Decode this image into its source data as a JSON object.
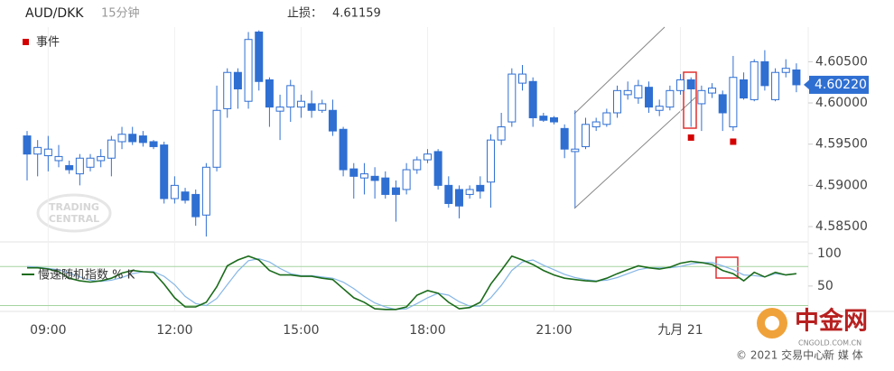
{
  "chart_data": [
    {
      "type": "candlestick",
      "title": "AUD/DKK",
      "subtitle": "15分钟",
      "stop_loss": {
        "label": "止损：",
        "value": 4.61159
      },
      "categories": [
        null,
        null,
        "09:00",
        null,
        null,
        null,
        null,
        null,
        null,
        null,
        null,
        null,
        null,
        null,
        "12:00",
        null,
        null,
        null,
        null,
        null,
        null,
        null,
        null,
        null,
        null,
        null,
        "15:00",
        null,
        null,
        null,
        null,
        null,
        null,
        null,
        null,
        null,
        null,
        null,
        "18:00",
        null,
        null,
        null,
        null,
        null,
        null,
        null,
        null,
        null,
        null,
        null,
        "21:00",
        null,
        null,
        null,
        null,
        null,
        null,
        null,
        null,
        null,
        null,
        null,
        "九月 21",
        null,
        null,
        null,
        null,
        null,
        null,
        null,
        null,
        null,
        null,
        null
      ],
      "open": [
        4.596,
        4.5938,
        4.5936,
        4.593,
        4.5924,
        4.5914,
        4.5922,
        4.593,
        4.5933,
        4.5953,
        4.5962,
        4.596,
        4.5953,
        4.5949,
        4.5884,
        4.5892,
        4.5889,
        4.5864,
        4.5922,
        4.5993,
        4.6037,
        4.6002,
        4.6086,
        4.6028,
        4.599,
        4.5995,
        4.5995,
        4.5999,
        4.5991,
        4.5991,
        4.5968,
        4.592,
        4.5909,
        4.5911,
        4.5909,
        4.5897,
        4.5895,
        4.5919,
        4.5931,
        4.5941,
        4.59,
        4.5895,
        4.5889,
        4.59,
        4.5904,
        4.5955,
        4.5977,
        4.6024,
        4.6026,
        4.5984,
        4.5982,
        4.5969,
        4.5941,
        4.5947,
        4.5971,
        4.5974,
        4.5988,
        4.601,
        4.6006,
        4.6019,
        4.5991,
        4.5995,
        4.6015,
        4.6028,
        4.5999,
        4.6012,
        4.601,
        4.5971,
        4.6028,
        4.6004,
        4.605,
        4.6004,
        4.6037,
        4.604
      ],
      "high": [
        4.5966,
        4.5955,
        4.596,
        4.5949,
        4.593,
        4.5938,
        4.5938,
        4.5944,
        4.596,
        4.5971,
        4.5971,
        4.5966,
        4.5955,
        4.5953,
        4.5911,
        4.5897,
        4.5895,
        4.5927,
        4.6021,
        4.6042,
        4.6042,
        4.6086,
        4.6088,
        4.6031,
        4.601,
        4.6028,
        4.601,
        4.6015,
        4.6004,
        4.6004,
        4.5971,
        4.5927,
        4.5927,
        4.5922,
        4.5917,
        4.5906,
        4.5927,
        4.5935,
        4.5944,
        4.5944,
        4.5911,
        4.59,
        4.59,
        4.5911,
        4.5962,
        4.5988,
        4.6042,
        4.6046,
        4.6031,
        4.5988,
        4.5984,
        4.5974,
        4.5991,
        4.5982,
        4.5982,
        4.5993,
        4.6021,
        4.6026,
        4.6028,
        4.6026,
        4.6004,
        4.6021,
        4.6035,
        4.6031,
        4.6021,
        4.6024,
        4.6015,
        4.6057,
        4.6037,
        4.6053,
        4.6064,
        4.6042,
        4.6053,
        4.6048
      ],
      "low": [
        4.5906,
        4.5911,
        4.5917,
        4.5922,
        4.5914,
        4.59,
        4.5917,
        4.5922,
        4.5911,
        4.5944,
        4.5949,
        4.5947,
        4.5944,
        4.5878,
        4.5878,
        4.5878,
        4.5851,
        4.5838,
        4.5917,
        4.5982,
        4.5993,
        4.5993,
        4.6015,
        4.5971,
        4.5955,
        4.5977,
        4.5982,
        4.5982,
        4.5988,
        4.596,
        4.5911,
        4.5884,
        4.5889,
        4.5884,
        4.5884,
        4.5856,
        4.5889,
        4.5914,
        4.5927,
        4.5895,
        4.5873,
        4.586,
        4.5884,
        4.5884,
        4.5873,
        4.5949,
        4.5971,
        4.6015,
        4.5971,
        4.5977,
        4.5974,
        4.5933,
        4.5873,
        4.5944,
        4.5966,
        4.5971,
        4.5982,
        4.6004,
        4.5999,
        4.5988,
        4.5984,
        4.5991,
        4.601,
        4.5971,
        4.5966,
        4.6006,
        4.5966,
        4.5966,
        4.6004,
        4.6002,
        4.6015,
        4.6002,
        4.6031,
        4.6013
      ],
      "close": [
        4.5938,
        4.5946,
        4.5944,
        4.5935,
        4.5919,
        4.5933,
        4.5933,
        4.5935,
        4.5955,
        4.5962,
        4.5953,
        4.5952,
        4.5947,
        4.5884,
        4.59,
        4.5882,
        4.5862,
        4.5922,
        4.5991,
        4.6037,
        4.6017,
        4.6077,
        4.6026,
        4.5995,
        4.5995,
        4.6021,
        4.6002,
        4.5991,
        4.5999,
        4.5966,
        4.5919,
        4.5911,
        4.5914,
        4.5906,
        4.5889,
        4.5889,
        4.5919,
        4.5931,
        4.5938,
        4.59,
        4.5878,
        4.5875,
        4.5895,
        4.5893,
        4.5955,
        4.5971,
        4.6035,
        4.6035,
        4.5982,
        4.5979,
        4.5977,
        4.5944,
        4.5944,
        4.5974,
        4.5977,
        4.5988,
        4.6015,
        4.6015,
        4.6021,
        4.5995,
        4.5996,
        4.6015,
        4.6028,
        4.6017,
        4.6015,
        4.6018,
        4.5988,
        4.6031,
        4.6006,
        4.605,
        4.6021,
        4.6037,
        4.6042,
        4.6022
      ],
      "color": "#2f6fd2",
      "ylim": [
        4.5838,
        4.6092
      ],
      "yticks": [
        {
          "value": 4.605,
          "label": "4.60500"
        },
        {
          "value": 4.6,
          "label": "4.60000"
        },
        {
          "value": 4.595,
          "label": "4.59500"
        },
        {
          "value": 4.59,
          "label": "4.59000"
        },
        {
          "value": 4.585,
          "label": "4.58500"
        }
      ],
      "last_price": {
        "value": 4.6022,
        "label": "4.60220"
      },
      "events": {
        "name": "事件",
        "color": "#d40000",
        "x": [
          63,
          67
        ],
        "values": [
          4.5958,
          4.5953
        ]
      },
      "grid": true
    },
    {
      "type": "line",
      "series": [
        {
          "name": "慢速随机指数 % K",
          "color": "#1b6b1b",
          "values": [
            78,
            78,
            76,
            72,
            62,
            58,
            56,
            58,
            62,
            70,
            74,
            72,
            71,
            53,
            32,
            18,
            18,
            25,
            49,
            81,
            90,
            96,
            90,
            74,
            67,
            67,
            65,
            65,
            62,
            60,
            46,
            32,
            25,
            15,
            14,
            14,
            18,
            36,
            43,
            39,
            25,
            15,
            17,
            25,
            53,
            74,
            96,
            90,
            83,
            74,
            67,
            62,
            60,
            58,
            57,
            62,
            69,
            75,
            81,
            78,
            76,
            79,
            85,
            88,
            86,
            83,
            74,
            69,
            58,
            71,
            64,
            71,
            67,
            69
          ]
        },
        {
          "color": "#86b6e6",
          "values": [
            80,
            79,
            77,
            75,
            70,
            64,
            59,
            57,
            59,
            63,
            69,
            72,
            72,
            65,
            52,
            34,
            23,
            20,
            31,
            52,
            73,
            89,
            92,
            87,
            77,
            69,
            66,
            66,
            64,
            62,
            56,
            46,
            34,
            24,
            18,
            14,
            15,
            23,
            32,
            39,
            36,
            26,
            19,
            19,
            32,
            51,
            74,
            87,
            90,
            82,
            75,
            68,
            63,
            60,
            58,
            59,
            63,
            69,
            75,
            78,
            78,
            78,
            80,
            84,
            86,
            86,
            81,
            75,
            67,
            66,
            64,
            69,
            67,
            69
          ]
        }
      ],
      "ylim": [
        11,
        115
      ],
      "yticks": [
        100,
        50
      ],
      "levels": [
        80,
        20
      ],
      "level_color": "#a6d4a0"
    }
  ],
  "watermark": {
    "line1": "TRADING",
    "line2": "CENTRAL",
    "logo": "中金网",
    "site": "CNGOLD.COM.CN",
    "copyright": "© 2021 交易中心",
    "media": "新 媒 体"
  }
}
